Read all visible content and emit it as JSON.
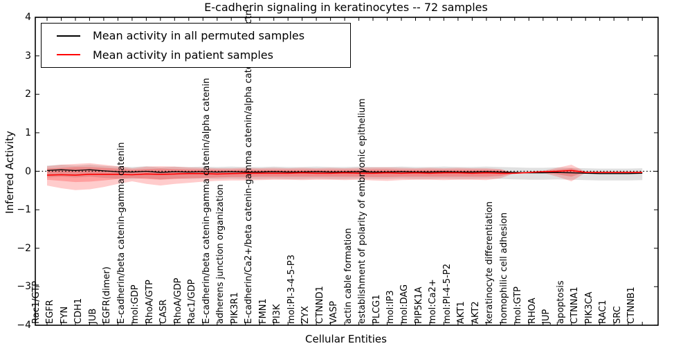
{
  "figure": {
    "background": "#ffffff"
  },
  "chart_data": {
    "type": "line",
    "title": "E-cadherin signaling in keratinocytes -- 72 samples",
    "xlabel": "Cellular Entities",
    "ylabel": "Inferred Activity",
    "ylim": [
      -4,
      4
    ],
    "yticks": [
      -4,
      -3,
      -2,
      -1,
      0,
      1,
      2,
      3,
      4
    ],
    "grid": false,
    "zero_line_style": "dotted",
    "legend_position": "upper left",
    "axis_color": "#000000",
    "categories": [
      "Rac1/GTP",
      "EGFR",
      "FYN",
      "CDH1",
      "JUB",
      "EGFR(dimer)",
      "E-cadherin/beta catenin-gamma catenin",
      "mol:GDP",
      "RhoA/GTP",
      "CASR",
      "RhoA/GDP",
      "Rac1/GDP",
      "E-cadherin/beta catenin-gamma catenin/alpha catenin",
      "adherens junction organization",
      "PIK3R1",
      "E-cadherin/Ca2+/beta catenin-gamma catenin/alpha catenin/p120ctn",
      "FMN1",
      "PI3K",
      "mol:PI-3-4-5-P3",
      "ZYX",
      "CTNND1",
      "VASP",
      "actin cable formation",
      "establishment of polarity of embryonic epithelium",
      "PLCG1",
      "mol:IP3",
      "mol:DAG",
      "PIP5K1A",
      "mol:Ca2+",
      "mol:PI-4-5-P2",
      "AKT1",
      "AKT2",
      "keratinocyte differentiation",
      "homophilic cell adhesion",
      "mol:GTP",
      "RHOA",
      "JUP",
      "apoptosis",
      "CTNNA1",
      "PIK3CA",
      "RAC1",
      "SRC",
      "CTNNB1"
    ],
    "series": [
      {
        "name": "Mean activity in all permuted samples",
        "color": "#000000",
        "values": [
          0.02,
          0.04,
          0.02,
          0.04,
          0.01,
          -0.01,
          -0.02,
          0.0,
          -0.03,
          -0.01,
          -0.02,
          -0.01,
          -0.02,
          -0.01,
          -0.02,
          -0.02,
          -0.01,
          -0.02,
          -0.02,
          -0.01,
          -0.02,
          -0.02,
          -0.01,
          -0.02,
          -0.02,
          -0.01,
          -0.02,
          -0.02,
          -0.01,
          -0.02,
          -0.02,
          -0.01,
          -0.02,
          -0.03,
          -0.04,
          -0.04,
          -0.03,
          -0.04,
          -0.05,
          -0.06,
          -0.06,
          -0.06,
          -0.05
        ]
      },
      {
        "name": "Mean activity in patient samples",
        "color": "#ff0000",
        "values": [
          -0.1,
          -0.09,
          -0.1,
          -0.08,
          -0.08,
          -0.08,
          -0.09,
          -0.07,
          -0.08,
          -0.07,
          -0.06,
          -0.06,
          -0.07,
          -0.06,
          -0.05,
          -0.05,
          -0.05,
          -0.05,
          -0.04,
          -0.05,
          -0.05,
          -0.04,
          -0.05,
          -0.05,
          -0.04,
          -0.05,
          -0.04,
          -0.05,
          -0.04,
          -0.04,
          -0.05,
          -0.04,
          -0.05,
          -0.05,
          -0.03,
          -0.01,
          0.0,
          0.02,
          -0.03,
          -0.03,
          -0.03,
          -0.03,
          -0.03
        ]
      }
    ],
    "bands": [
      {
        "name": "permuted-sample-range",
        "color": "#999999",
        "opacity": 0.3,
        "upper": [
          0.15,
          0.17,
          0.15,
          0.17,
          0.14,
          0.12,
          0.11,
          0.13,
          0.1,
          0.12,
          0.11,
          0.12,
          0.11,
          0.12,
          0.11,
          0.11,
          0.12,
          0.11,
          0.11,
          0.12,
          0.11,
          0.11,
          0.12,
          0.11,
          0.11,
          0.12,
          0.11,
          0.11,
          0.12,
          0.11,
          0.11,
          0.12,
          0.11,
          0.1,
          0.09,
          0.09,
          0.1,
          0.09,
          0.08,
          0.07,
          0.07,
          0.07,
          0.08
        ],
        "lower": [
          -0.16,
          -0.14,
          -0.16,
          -0.14,
          -0.17,
          -0.19,
          -0.2,
          -0.18,
          -0.21,
          -0.19,
          -0.2,
          -0.19,
          -0.2,
          -0.19,
          -0.2,
          -0.2,
          -0.19,
          -0.2,
          -0.2,
          -0.19,
          -0.2,
          -0.2,
          -0.19,
          -0.2,
          -0.2,
          -0.19,
          -0.2,
          -0.2,
          -0.19,
          -0.2,
          -0.2,
          -0.19,
          -0.2,
          -0.21,
          -0.22,
          -0.22,
          -0.21,
          -0.22,
          -0.23,
          -0.24,
          -0.24,
          -0.24,
          -0.23
        ]
      },
      {
        "name": "patient-sample-range-outer",
        "color": "#ff0000",
        "opacity": 0.2,
        "upper": [
          0.13,
          0.17,
          0.19,
          0.21,
          0.17,
          0.13,
          0.08,
          0.12,
          0.13,
          0.12,
          0.1,
          0.09,
          0.08,
          0.08,
          0.09,
          0.08,
          0.09,
          0.08,
          0.09,
          0.08,
          0.09,
          0.08,
          0.09,
          0.1,
          0.1,
          0.09,
          0.08,
          0.09,
          0.08,
          0.09,
          0.08,
          0.08,
          0.06,
          -0.05,
          -0.03,
          0.01,
          0.09,
          0.17,
          -0.01,
          -0.03,
          -0.03,
          -0.03,
          -0.03
        ],
        "lower": [
          -0.37,
          -0.44,
          -0.49,
          -0.47,
          -0.41,
          -0.33,
          -0.26,
          -0.33,
          -0.37,
          -0.33,
          -0.3,
          -0.27,
          -0.25,
          -0.24,
          -0.24,
          -0.23,
          -0.22,
          -0.22,
          -0.23,
          -0.22,
          -0.22,
          -0.23,
          -0.22,
          -0.24,
          -0.25,
          -0.23,
          -0.22,
          -0.22,
          -0.23,
          -0.22,
          -0.22,
          -0.23,
          -0.18,
          -0.05,
          -0.03,
          -0.04,
          -0.14,
          -0.26,
          -0.04,
          -0.03,
          -0.03,
          -0.03,
          -0.03
        ]
      },
      {
        "name": "patient-sample-range-inner",
        "color": "#ff0000",
        "opacity": 0.22,
        "upper": [
          0.07,
          0.09,
          0.11,
          0.11,
          0.09,
          0.07,
          0.04,
          0.06,
          0.07,
          0.06,
          0.05,
          0.05,
          0.04,
          0.04,
          0.05,
          0.04,
          0.04,
          0.04,
          0.04,
          0.04,
          0.04,
          0.04,
          0.04,
          0.05,
          0.05,
          0.04,
          0.04,
          0.04,
          0.04,
          0.04,
          0.04,
          0.04,
          0.03,
          -0.05,
          -0.03,
          0.0,
          0.04,
          0.08,
          -0.02,
          -0.03,
          -0.03,
          -0.03,
          -0.03
        ],
        "lower": [
          -0.22,
          -0.25,
          -0.28,
          -0.27,
          -0.24,
          -0.2,
          -0.17,
          -0.2,
          -0.22,
          -0.2,
          -0.18,
          -0.17,
          -0.16,
          -0.15,
          -0.15,
          -0.14,
          -0.14,
          -0.14,
          -0.14,
          -0.14,
          -0.14,
          -0.14,
          -0.14,
          -0.15,
          -0.15,
          -0.14,
          -0.14,
          -0.14,
          -0.14,
          -0.14,
          -0.14,
          -0.14,
          -0.12,
          -0.05,
          -0.03,
          -0.02,
          -0.08,
          -0.14,
          -0.02,
          -0.03,
          -0.03,
          -0.03,
          -0.03
        ]
      }
    ]
  }
}
